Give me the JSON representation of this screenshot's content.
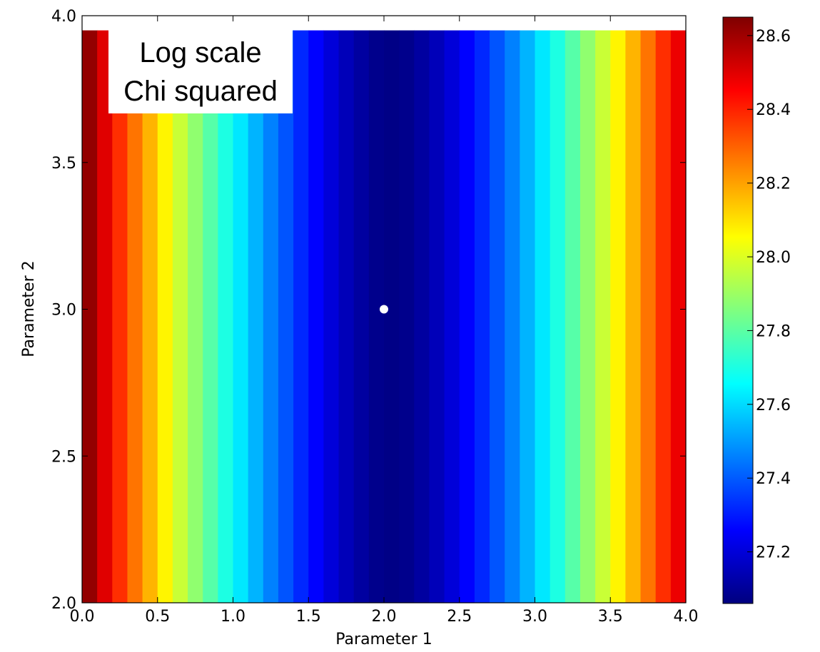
{
  "chart_data": {
    "type": "heatmap",
    "title": "",
    "xlabel": "Parameter 1",
    "ylabel": "Parameter 2",
    "xlim": [
      0.0,
      4.0
    ],
    "ylim": [
      2.0,
      4.0
    ],
    "x_ticks": [
      "0.0",
      "0.5",
      "1.0",
      "1.5",
      "2.0",
      "2.5",
      "3.0",
      "3.5",
      "4.0"
    ],
    "y_ticks": [
      "2.0",
      "2.5",
      "3.0",
      "3.5",
      "4.0"
    ],
    "data_extent": {
      "x": [
        0.0,
        3.95
      ],
      "y": [
        2.0,
        3.95
      ]
    },
    "grid": false,
    "colormap": "jet",
    "z_scale": "log",
    "colorbar": {
      "range": [
        27.06,
        28.65
      ],
      "ticks": [
        "27.2",
        "27.4",
        "27.6",
        "27.8",
        "28.0",
        "28.2",
        "28.4",
        "28.6"
      ]
    },
    "z_profile": {
      "description_free_note": "",
      "x": [
        0.0,
        0.1,
        0.2,
        0.3,
        0.4,
        0.5,
        0.6,
        0.7,
        0.8,
        0.9,
        1.0,
        1.1,
        1.2,
        1.3,
        1.4,
        1.5,
        1.6,
        1.7,
        1.8,
        1.9,
        2.0,
        2.1,
        2.2,
        2.3,
        2.4,
        2.5,
        2.6,
        2.7,
        2.8,
        2.9,
        3.0,
        3.1,
        3.2,
        3.3,
        3.4,
        3.5,
        3.6,
        3.7,
        3.8,
        3.9
      ],
      "z": [
        28.62,
        28.5,
        28.38,
        28.27,
        28.17,
        28.07,
        27.97,
        27.88,
        27.79,
        27.7,
        27.62,
        27.54,
        27.46,
        27.39,
        27.32,
        27.26,
        27.2,
        27.15,
        27.11,
        27.08,
        27.07,
        27.08,
        27.11,
        27.15,
        27.2,
        27.26,
        27.32,
        27.39,
        27.46,
        27.54,
        27.62,
        27.7,
        27.79,
        27.88,
        27.97,
        28.07,
        28.17,
        28.27,
        28.38,
        28.48
      ]
    },
    "marker": {
      "x": 2.0,
      "y": 3.0,
      "color": "#ffffff"
    },
    "annotation": {
      "lines": [
        "Log scale",
        "Chi squared"
      ]
    }
  }
}
